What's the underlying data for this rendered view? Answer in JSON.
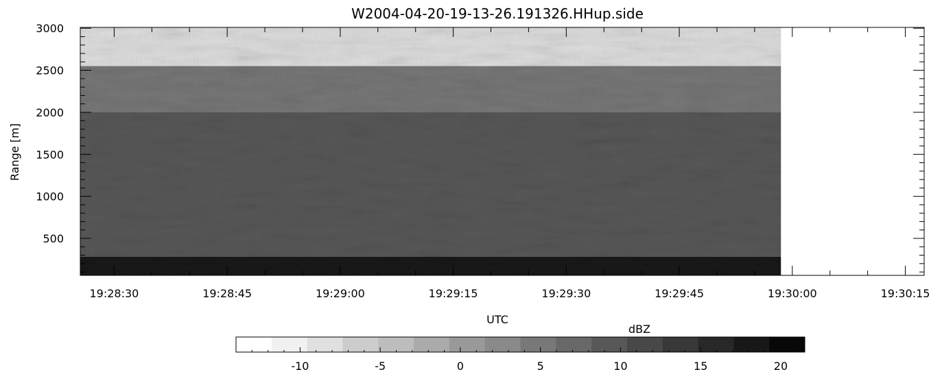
{
  "chart_data": {
    "type": "heatmap",
    "title": "W2004-04-20-19-13-26.191326.HHup.side",
    "xlabel": "UTC",
    "ylabel": "Range [m]",
    "x_ticks": [
      "19:28:30",
      "19:28:45",
      "19:29:00",
      "19:29:15",
      "19:29:30",
      "19:29:45",
      "19:30:00",
      "19:30:15"
    ],
    "x_tick_seconds": [
      30,
      45,
      60,
      75,
      90,
      105,
      120,
      135
    ],
    "xlim_seconds": [
      25.5,
      137.5
    ],
    "data_end_seconds": 118.5,
    "y_ticks": [
      500,
      1000,
      1500,
      2000,
      2500,
      3000
    ],
    "ylim": [
      60,
      3010
    ],
    "colorbar": {
      "label": "dBZ",
      "ticks": [
        -10,
        -5,
        0,
        5,
        10,
        15,
        20
      ],
      "range": [
        -14,
        21.5
      ],
      "levels": [
        "#ffffff",
        "#f1f1f1",
        "#e0e0e0",
        "#cccccc",
        "#bdbdbd",
        "#aaaaaa",
        "#999999",
        "#898989",
        "#787878",
        "#686868",
        "#585858",
        "#484848",
        "#383838",
        "#282828",
        "#181818",
        "#080808"
      ]
    },
    "scene_bands": [
      {
        "from_m": 60,
        "to_m": 280,
        "dbz": 19
      },
      {
        "from_m": 280,
        "to_m": 2000,
        "dbz": 9
      },
      {
        "from_m": 2000,
        "to_m": 2550,
        "dbz": 4
      },
      {
        "from_m": 2550,
        "to_m": 3010,
        "dbz": -9
      }
    ]
  }
}
